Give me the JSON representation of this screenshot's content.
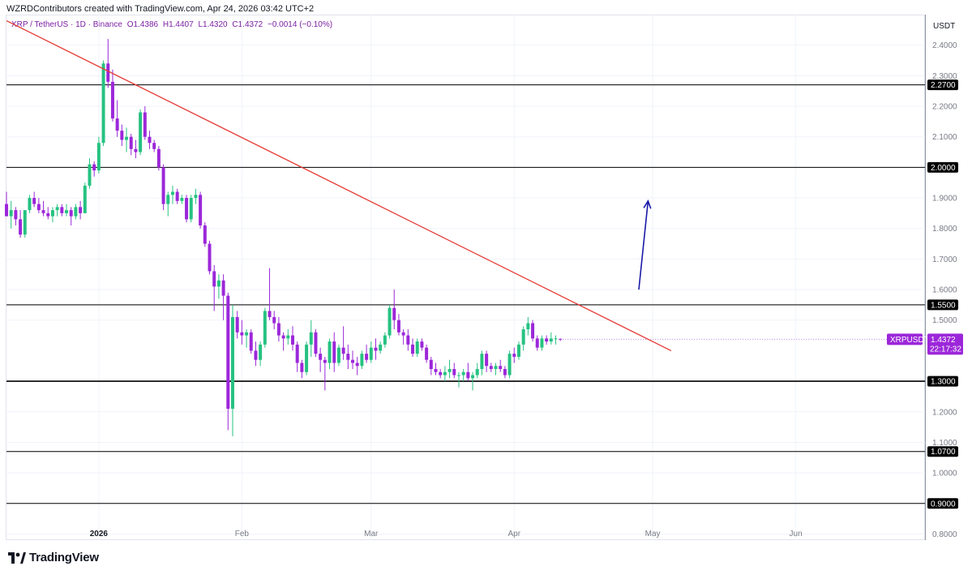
{
  "header_text": "WZRDContributors created with TradingView.com, Apr 24, 2026 03:42 UTC+2",
  "legend": {
    "symbol": "XRP / TetherUS · 1D · Binance",
    "open": "O1.4386",
    "high": "H1.4407",
    "low": "L1.4320",
    "close": "C1.4372",
    "change": "−0.0014 (−0.10%)"
  },
  "currency_label": "USDT",
  "brand": "TradingView",
  "colors": {
    "up": "#26c281",
    "down": "#9c27d9",
    "trendline": "#e53935",
    "arrow": "#1a1aa6",
    "level_line": "#000000",
    "price_line": "#b37ae6"
  },
  "chart_data": {
    "type": "candlestick",
    "symbol": "XRPUSDT",
    "timeframe": "1D",
    "ylim": [
      0.78,
      2.5
    ],
    "y_ticks": [
      {
        "value": 2.4,
        "label": "2.4000"
      },
      {
        "value": 2.3,
        "label": "2.3000"
      },
      {
        "value": 2.2,
        "label": "2.2000"
      },
      {
        "value": 2.1,
        "label": "2.1000"
      },
      {
        "value": 1.9,
        "label": "1.9000"
      },
      {
        "value": 1.8,
        "label": "1.8000"
      },
      {
        "value": 1.7,
        "label": "1.7000"
      },
      {
        "value": 1.6,
        "label": "1.6000"
      },
      {
        "value": 1.5,
        "label": "1.5000"
      },
      {
        "value": 1.2,
        "label": "1.2000"
      },
      {
        "value": 1.1,
        "label": "1.1000"
      },
      {
        "value": 1.0,
        "label": "1.0000"
      },
      {
        "value": 0.8,
        "label": "0.8000"
      }
    ],
    "x_ticks": [
      {
        "date": "2026-01-01",
        "label": "2026",
        "bold": true
      },
      {
        "date": "2026-02-01",
        "label": "Feb",
        "bold": false
      },
      {
        "date": "2026-03-01",
        "label": "Mar",
        "bold": false
      },
      {
        "date": "2026-04-01",
        "label": "Apr",
        "bold": false
      },
      {
        "date": "2026-05-01",
        "label": "May",
        "bold": false
      },
      {
        "date": "2026-06-01",
        "label": "Jun",
        "bold": false
      }
    ],
    "x_range": [
      "2025-12-12",
      "2026-06-29"
    ],
    "horizontal_levels": [
      {
        "value": 2.27,
        "label": "2.2700"
      },
      {
        "value": 2.0,
        "label": "2.0000"
      },
      {
        "value": 1.55,
        "label": "1.5500"
      },
      {
        "value": 1.3,
        "label": "1.3000"
      },
      {
        "value": 1.07,
        "label": "1.0700"
      },
      {
        "value": 0.9,
        "label": "0.9000"
      }
    ],
    "trendline": {
      "from": {
        "date": "2025-12-12",
        "value": 2.48
      },
      "to": {
        "date": "2026-05-05",
        "value": 1.4
      }
    },
    "arrow": {
      "from": {
        "date": "2026-04-28",
        "value": 1.6
      },
      "to": {
        "date": "2026-04-30",
        "value": 1.89
      }
    },
    "last_price": {
      "value": 1.4372,
      "label": "1.4372",
      "symbol_label": "XRPUSDT",
      "countdown": "22:17:32"
    },
    "start_date": "2025-12-12",
    "candles": [
      [
        1.88,
        1.92,
        1.84,
        1.84
      ],
      [
        1.84,
        1.89,
        1.8,
        1.86
      ],
      [
        1.86,
        1.87,
        1.81,
        1.83
      ],
      [
        1.83,
        1.86,
        1.77,
        1.78
      ],
      [
        1.78,
        1.86,
        1.77,
        1.86
      ],
      [
        1.86,
        1.91,
        1.85,
        1.9
      ],
      [
        1.9,
        1.92,
        1.87,
        1.88
      ],
      [
        1.88,
        1.9,
        1.85,
        1.86
      ],
      [
        1.86,
        1.89,
        1.84,
        1.85
      ],
      [
        1.85,
        1.87,
        1.83,
        1.84
      ],
      [
        1.84,
        1.87,
        1.82,
        1.86
      ],
      [
        1.86,
        1.88,
        1.84,
        1.87
      ],
      [
        1.87,
        1.88,
        1.84,
        1.85
      ],
      [
        1.85,
        1.88,
        1.84,
        1.86
      ],
      [
        1.86,
        1.87,
        1.81,
        1.84
      ],
      [
        1.84,
        1.88,
        1.83,
        1.87
      ],
      [
        1.87,
        1.89,
        1.83,
        1.85
      ],
      [
        1.85,
        1.95,
        1.85,
        1.94
      ],
      [
        1.94,
        2.03,
        1.93,
        2.01
      ],
      [
        2.01,
        2.02,
        1.97,
        1.99
      ],
      [
        1.99,
        2.1,
        1.98,
        2.08
      ],
      [
        2.08,
        2.35,
        2.07,
        2.34
      ],
      [
        2.34,
        2.42,
        2.26,
        2.28
      ],
      [
        2.28,
        2.32,
        2.15,
        2.16
      ],
      [
        2.16,
        2.22,
        2.1,
        2.12
      ],
      [
        2.12,
        2.14,
        2.07,
        2.09
      ],
      [
        2.09,
        2.13,
        2.05,
        2.1
      ],
      [
        2.1,
        2.11,
        2.04,
        2.06
      ],
      [
        2.06,
        2.09,
        2.03,
        2.05
      ],
      [
        2.05,
        2.19,
        2.04,
        2.18
      ],
      [
        2.18,
        2.2,
        2.09,
        2.1
      ],
      [
        2.1,
        2.12,
        2.06,
        2.08
      ],
      [
        2.08,
        2.09,
        2.05,
        2.06
      ],
      [
        2.06,
        2.07,
        1.99,
        2.0
      ],
      [
        2.0,
        2.01,
        1.86,
        1.88
      ],
      [
        1.88,
        1.92,
        1.84,
        1.91
      ],
      [
        1.91,
        1.94,
        1.88,
        1.92
      ],
      [
        1.92,
        1.93,
        1.88,
        1.89
      ],
      [
        1.89,
        1.91,
        1.88,
        1.9
      ],
      [
        1.9,
        1.91,
        1.82,
        1.83
      ],
      [
        1.83,
        1.91,
        1.82,
        1.9
      ],
      [
        1.9,
        1.93,
        1.88,
        1.91
      ],
      [
        1.91,
        1.92,
        1.8,
        1.81
      ],
      [
        1.81,
        1.82,
        1.74,
        1.75
      ],
      [
        1.75,
        1.76,
        1.65,
        1.66
      ],
      [
        1.66,
        1.68,
        1.53,
        1.61
      ],
      [
        1.61,
        1.65,
        1.57,
        1.63
      ],
      [
        1.63,
        1.65,
        1.5,
        1.58
      ],
      [
        1.58,
        1.59,
        1.14,
        1.21
      ],
      [
        1.21,
        1.55,
        1.12,
        1.51
      ],
      [
        1.51,
        1.53,
        1.44,
        1.46
      ],
      [
        1.46,
        1.5,
        1.42,
        1.45
      ],
      [
        1.45,
        1.47,
        1.41,
        1.46
      ],
      [
        1.46,
        1.47,
        1.39,
        1.4
      ],
      [
        1.4,
        1.43,
        1.35,
        1.37
      ],
      [
        1.37,
        1.43,
        1.35,
        1.42
      ],
      [
        1.42,
        1.54,
        1.41,
        1.53
      ],
      [
        1.53,
        1.67,
        1.5,
        1.51
      ],
      [
        1.51,
        1.53,
        1.47,
        1.49
      ],
      [
        1.49,
        1.51,
        1.43,
        1.45
      ],
      [
        1.45,
        1.46,
        1.4,
        1.44
      ],
      [
        1.44,
        1.47,
        1.42,
        1.45
      ],
      [
        1.45,
        1.48,
        1.4,
        1.42
      ],
      [
        1.42,
        1.43,
        1.33,
        1.36
      ],
      [
        1.36,
        1.37,
        1.31,
        1.33
      ],
      [
        1.33,
        1.43,
        1.32,
        1.42
      ],
      [
        1.42,
        1.5,
        1.38,
        1.46
      ],
      [
        1.46,
        1.47,
        1.38,
        1.39
      ],
      [
        1.39,
        1.41,
        1.33,
        1.37
      ],
      [
        1.37,
        1.38,
        1.27,
        1.36
      ],
      [
        1.36,
        1.44,
        1.34,
        1.43
      ],
      [
        1.43,
        1.46,
        1.33,
        1.36
      ],
      [
        1.36,
        1.42,
        1.35,
        1.41
      ],
      [
        1.41,
        1.48,
        1.37,
        1.39
      ],
      [
        1.39,
        1.42,
        1.34,
        1.37
      ],
      [
        1.37,
        1.4,
        1.34,
        1.36
      ],
      [
        1.36,
        1.38,
        1.32,
        1.35
      ],
      [
        1.35,
        1.4,
        1.34,
        1.39
      ],
      [
        1.39,
        1.42,
        1.36,
        1.37
      ],
      [
        1.37,
        1.43,
        1.36,
        1.41
      ],
      [
        1.41,
        1.44,
        1.37,
        1.4
      ],
      [
        1.4,
        1.43,
        1.39,
        1.42
      ],
      [
        1.42,
        1.46,
        1.41,
        1.45
      ],
      [
        1.45,
        1.55,
        1.44,
        1.54
      ],
      [
        1.54,
        1.6,
        1.47,
        1.5
      ],
      [
        1.5,
        1.52,
        1.45,
        1.46
      ],
      [
        1.46,
        1.47,
        1.42,
        1.45
      ],
      [
        1.45,
        1.47,
        1.4,
        1.42
      ],
      [
        1.42,
        1.44,
        1.38,
        1.39
      ],
      [
        1.39,
        1.44,
        1.38,
        1.43
      ],
      [
        1.43,
        1.44,
        1.4,
        1.41
      ],
      [
        1.41,
        1.42,
        1.36,
        1.37
      ],
      [
        1.37,
        1.38,
        1.32,
        1.34
      ],
      [
        1.34,
        1.36,
        1.32,
        1.33
      ],
      [
        1.33,
        1.34,
        1.31,
        1.32
      ],
      [
        1.32,
        1.35,
        1.3,
        1.33
      ],
      [
        1.33,
        1.37,
        1.31,
        1.34
      ],
      [
        1.34,
        1.36,
        1.31,
        1.32
      ],
      [
        1.32,
        1.33,
        1.28,
        1.32
      ],
      [
        1.32,
        1.34,
        1.3,
        1.33
      ],
      [
        1.33,
        1.36,
        1.3,
        1.31
      ],
      [
        1.31,
        1.33,
        1.27,
        1.32
      ],
      [
        1.32,
        1.36,
        1.31,
        1.34
      ],
      [
        1.34,
        1.4,
        1.32,
        1.39
      ],
      [
        1.39,
        1.4,
        1.33,
        1.35
      ],
      [
        1.35,
        1.36,
        1.33,
        1.34
      ],
      [
        1.34,
        1.36,
        1.32,
        1.35
      ],
      [
        1.35,
        1.37,
        1.33,
        1.34
      ],
      [
        1.34,
        1.35,
        1.31,
        1.32
      ],
      [
        1.32,
        1.4,
        1.31,
        1.39
      ],
      [
        1.39,
        1.41,
        1.36,
        1.38
      ],
      [
        1.38,
        1.43,
        1.37,
        1.42
      ],
      [
        1.42,
        1.48,
        1.4,
        1.47
      ],
      [
        1.47,
        1.51,
        1.45,
        1.49
      ],
      [
        1.49,
        1.5,
        1.43,
        1.44
      ],
      [
        1.44,
        1.45,
        1.4,
        1.41
      ],
      [
        1.41,
        1.45,
        1.4,
        1.44
      ],
      [
        1.44,
        1.45,
        1.42,
        1.43
      ],
      [
        1.43,
        1.46,
        1.42,
        1.44
      ],
      [
        1.44,
        1.45,
        1.42,
        1.44
      ],
      [
        1.4386,
        1.4407,
        1.432,
        1.4372
      ]
    ]
  }
}
